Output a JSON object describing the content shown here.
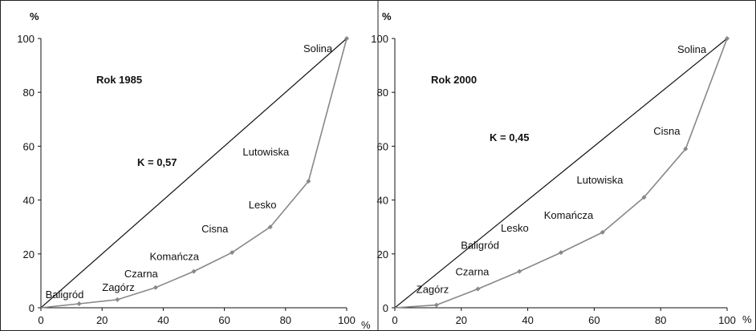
{
  "chart_data": [
    {
      "type": "line",
      "title": "Rok 1985",
      "annotation": "K = 0,57",
      "ylabel": "%",
      "xlabel": "%",
      "xlim": [
        0,
        100
      ],
      "ylim": [
        0,
        100
      ],
      "xticks": [
        0,
        20,
        40,
        60,
        80,
        100
      ],
      "yticks": [
        0,
        20,
        40,
        60,
        80,
        100
      ],
      "series": [
        {
          "line_color": "#888888",
          "points": [
            {
              "x": 0,
              "y": 0
            },
            {
              "x": 12.5,
              "y": 1.5,
              "label": "Baligród"
            },
            {
              "x": 25,
              "y": 3,
              "label": "Zagórz"
            },
            {
              "x": 37.5,
              "y": 7.5,
              "label": "Czarna"
            },
            {
              "x": 50,
              "y": 13.5,
              "label": "Komańcza"
            },
            {
              "x": 62.5,
              "y": 20.5,
              "label": "Cisna"
            },
            {
              "x": 75,
              "y": 30,
              "label": "Lesko"
            },
            {
              "x": 87.5,
              "y": 47,
              "label": "Lutowiska"
            },
            {
              "x": 100,
              "y": 100,
              "label": "Solina"
            }
          ]
        }
      ],
      "equality_line": {
        "from": [
          0,
          0
        ],
        "to": [
          100,
          100
        ],
        "color": "#111111"
      }
    },
    {
      "type": "line",
      "title": "Rok 2000",
      "annotation": "K = 0,45",
      "ylabel": "%",
      "xlabel": "%",
      "xlim": [
        0,
        100
      ],
      "ylim": [
        0,
        100
      ],
      "xticks": [
        0,
        20,
        40,
        60,
        80,
        100
      ],
      "yticks": [
        0,
        20,
        40,
        60,
        80,
        100
      ],
      "series": [
        {
          "line_color": "#888888",
          "points": [
            {
              "x": 0,
              "y": 0
            },
            {
              "x": 12.5,
              "y": 1,
              "label": "Zagórz"
            },
            {
              "x": 25,
              "y": 7,
              "label": "Czarna"
            },
            {
              "x": 37.5,
              "y": 13.5,
              "label": "Baligród"
            },
            {
              "x": 50,
              "y": 20.5,
              "label": "Lesko"
            },
            {
              "x": 62.5,
              "y": 28,
              "label": "Komańcza"
            },
            {
              "x": 75,
              "y": 41,
              "label": "Lutowiska"
            },
            {
              "x": 87.5,
              "y": 59,
              "label": "Cisna"
            },
            {
              "x": 100,
              "y": 100,
              "label": "Solina"
            }
          ]
        }
      ],
      "equality_line": {
        "from": [
          0,
          0
        ],
        "to": [
          100,
          100
        ],
        "color": "#111111"
      }
    }
  ]
}
